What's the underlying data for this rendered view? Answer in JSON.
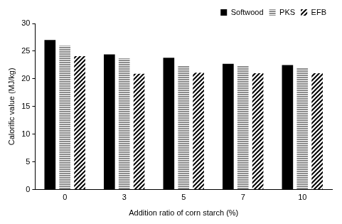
{
  "chart_data": {
    "type": "bar",
    "x_label": "Addition ratio of corn starch (%)",
    "y_label": "Calorific value (MJ/kg)",
    "categories": [
      "0",
      "3",
      "5",
      "7",
      "10"
    ],
    "series": [
      {
        "name": "Softwood",
        "color": "#000000",
        "values": [
          27.0,
          24.4,
          23.8,
          22.7,
          22.5
        ]
      },
      {
        "name": "PKS",
        "color": "#8c8c8c",
        "values": [
          26.0,
          23.7,
          22.3,
          22.3,
          22.0
        ]
      },
      {
        "name": "EFB",
        "color": "#000000",
        "values": [
          24.1,
          20.9,
          21.1,
          21.0,
          21.0
        ]
      }
    ],
    "ylim": [
      0,
      30
    ],
    "yticks": [
      0,
      5,
      10,
      15,
      20,
      25,
      30
    ],
    "grid": false,
    "legend": "upper right"
  }
}
